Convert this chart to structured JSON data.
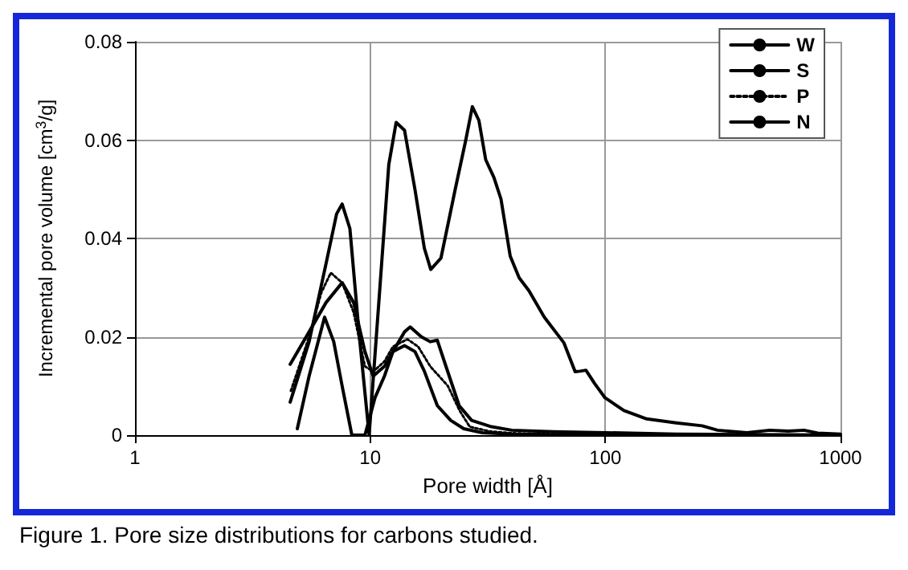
{
  "chart_data": {
    "type": "line",
    "xlabel": "Pore width [Å]",
    "ylabel": "Incremental pore volume [cm$^{3}$/g]",
    "log": "x",
    "xlim": [
      1,
      1000
    ],
    "xticks": [
      1,
      10,
      100,
      1000
    ],
    "ylim": [
      0,
      0.08
    ],
    "yticks": [
      0,
      0.02,
      0.04,
      0.06,
      0.08
    ],
    "grid": true,
    "legend": "top right",
    "marker": "none",
    "annotations": [
      "Figure 1.  Pore size distributions for carbons studied."
    ],
    "series": [
      {
        "name": "W",
        "color": "#000000",
        "line_style": "solid",
        "x": [
          4.57,
          5.5,
          6.5,
          7.2,
          7.6,
          8.2,
          9,
          9.9,
          11,
          12,
          12.9,
          14,
          15.5,
          17,
          18.1,
          20,
          23,
          25.5,
          27.2,
          29,
          31,
          33.6,
          36,
          39.4,
          43,
          47.3,
          55,
          66.6,
          74.4,
          78,
          82.7,
          90,
          99.7,
          120,
          150,
          200,
          258,
          300,
          400,
          500,
          600,
          700,
          800,
          1000
        ],
        "values": [
          0.0067,
          0.019,
          0.035,
          0.045,
          0.047,
          0.042,
          0.02,
          0.0,
          0.03,
          0.055,
          0.0636,
          0.062,
          0.05,
          0.038,
          0.0337,
          0.036,
          0.05,
          0.06,
          0.0668,
          0.064,
          0.056,
          0.0524,
          0.048,
          0.0364,
          0.032,
          0.0294,
          0.024,
          0.0188,
          0.0129,
          0.013,
          0.0132,
          0.0105,
          0.0076,
          0.005,
          0.0033,
          0.0025,
          0.0019,
          0.001,
          0.0005,
          0.001,
          0.0008,
          0.001,
          0.0004,
          0.0002
        ]
      },
      {
        "name": "S",
        "color": "#000000",
        "line_style": "solid",
        "x": [
          4.57,
          5.5,
          6.5,
          7.6,
          8.5,
          9.5,
          10.3,
          11.5,
          12.5,
          14,
          15.5,
          17,
          19.3,
          22,
          25,
          30,
          40,
          60,
          100,
          200,
          1000
        ],
        "values": [
          0.0144,
          0.021,
          0.027,
          0.031,
          0.027,
          0.017,
          0.012,
          0.014,
          0.017,
          0.0182,
          0.017,
          0.013,
          0.006,
          0.003,
          0.0013,
          0.0005,
          0.0002,
          0.0001,
          0.0,
          0.0,
          0.0
        ]
      },
      {
        "name": "P",
        "color": "#000000",
        "line_style": "dotted",
        "x": [
          4.6,
          5.5,
          6.2,
          6.8,
          7.6,
          8.5,
          9.5,
          10.3,
          11.5,
          12.5,
          14.4,
          16,
          18,
          21.4,
          24,
          26.5,
          32,
          40,
          60,
          100,
          200,
          1000
        ],
        "values": [
          0.009,
          0.02,
          0.029,
          0.033,
          0.031,
          0.025,
          0.014,
          0.0129,
          0.015,
          0.018,
          0.0195,
          0.018,
          0.014,
          0.01,
          0.005,
          0.0017,
          0.0008,
          0.0004,
          0.0002,
          0.0001,
          0.0,
          0.0
        ]
      },
      {
        "name": "N",
        "color": "#000000",
        "line_style": "solid",
        "x": [
          4.9,
          5.5,
          6.4,
          7,
          7.6,
          8.36,
          9.5,
          10.5,
          11.5,
          12.5,
          14,
          14.8,
          16.5,
          18,
          19.3,
          21,
          23.9,
          27,
          32.8,
          40,
          60,
          100,
          200,
          1000
        ],
        "values": [
          0.0013,
          0.012,
          0.024,
          0.019,
          0.01,
          0.0,
          0.0,
          0.0077,
          0.012,
          0.017,
          0.021,
          0.022,
          0.02,
          0.019,
          0.0193,
          0.014,
          0.006,
          0.003,
          0.0017,
          0.001,
          0.0007,
          0.0005,
          0.0002,
          0.0
        ]
      }
    ]
  }
}
